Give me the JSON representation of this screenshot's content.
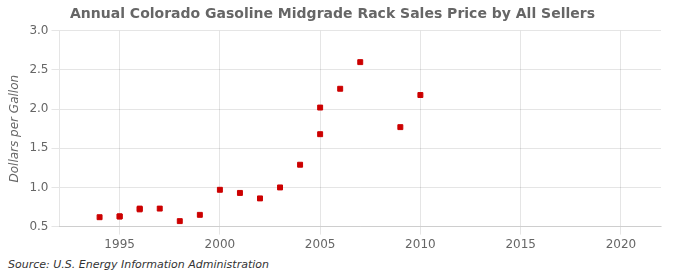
{
  "chart_data": {
    "type": "scatter",
    "title": "Annual Colorado Gasoline Midgrade Rack Sales Price by All Sellers",
    "ylabel": "Dollars per Gallon",
    "annotations": [
      "Source: U.S. Energy Information Administration"
    ],
    "x": [
      1994,
      1995,
      1995,
      1996,
      1996,
      1997,
      1998,
      1999,
      2000,
      2001,
      2002,
      2003,
      2004,
      2005,
      2005,
      2006,
      2007,
      2009,
      2010
    ],
    "values": [
      0.62,
      0.63,
      0.63,
      0.72,
      0.73,
      0.73,
      0.57,
      0.65,
      0.97,
      0.93,
      0.86,
      1.0,
      1.29,
      1.68,
      2.02,
      2.26,
      2.6,
      1.77,
      2.18
    ],
    "color": "#cc0000",
    "marker": "square",
    "xlim": [
      1992,
      2022
    ],
    "ylim": [
      0.5,
      3.0
    ],
    "xticks": [
      1995,
      2000,
      2005,
      2010,
      2015,
      2020
    ],
    "yticks": [
      0.5,
      {
        "value": 1.0,
        "label": "1.0"
      },
      1.5,
      {
        "value": 2.0,
        "label": "2.0"
      },
      2.5,
      {
        "value": 3.0,
        "label": "3.0"
      }
    ],
    "grid": true
  }
}
